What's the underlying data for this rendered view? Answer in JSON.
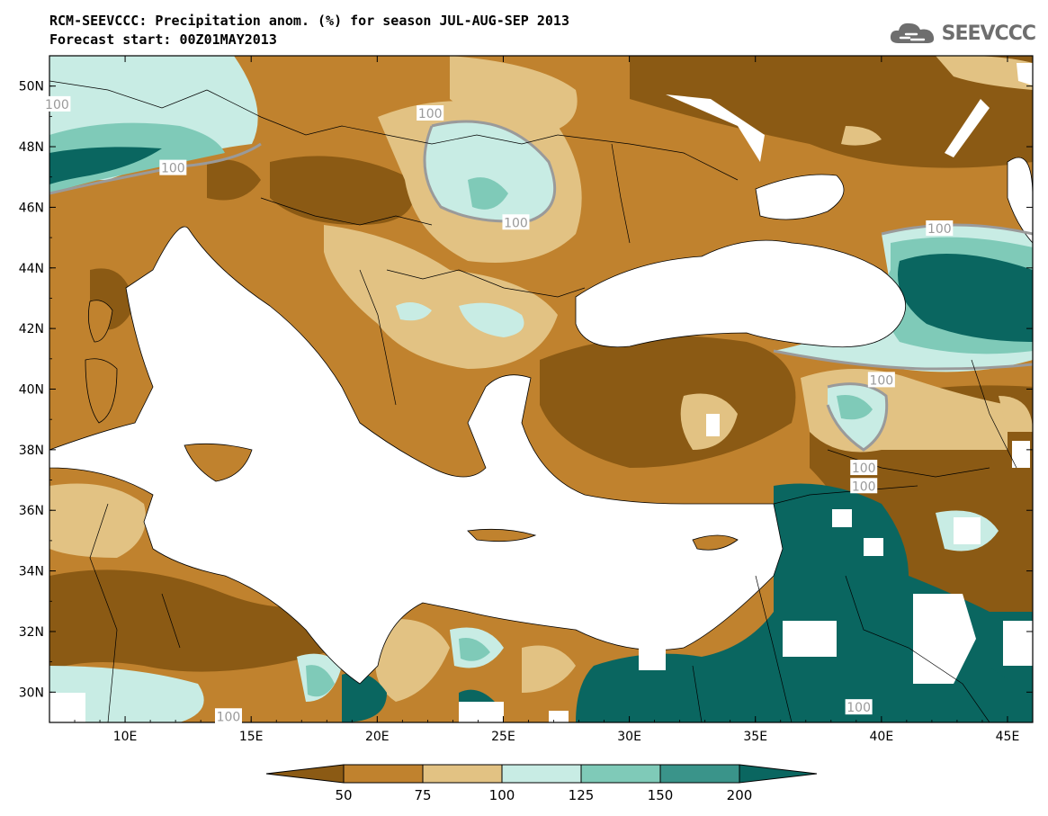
{
  "title": {
    "line1": "RCM-SEEVCCC: Precipitation anom. (%) for season JUL-AUG-SEP 2013",
    "line2": "Forecast start: 00Z01MAY2013"
  },
  "logo": {
    "text": "SEEVCCC",
    "icon": "cloud-icon",
    "color": "#6e6e6e"
  },
  "map": {
    "lon_range": [
      7,
      46
    ],
    "lat_range": [
      29,
      51
    ],
    "ocean_color": "#ffffff",
    "lat_ticks": [
      {
        "value": 30,
        "label": "30N"
      },
      {
        "value": 32,
        "label": "32N"
      },
      {
        "value": 34,
        "label": "34N"
      },
      {
        "value": 36,
        "label": "36N"
      },
      {
        "value": 38,
        "label": "38N"
      },
      {
        "value": 40,
        "label": "40N"
      },
      {
        "value": 42,
        "label": "42N"
      },
      {
        "value": 44,
        "label": "44N"
      },
      {
        "value": 46,
        "label": "46N"
      },
      {
        "value": 48,
        "label": "48N"
      },
      {
        "value": 50,
        "label": "50N"
      }
    ],
    "lon_ticks": [
      {
        "value": 10,
        "label": "10E"
      },
      {
        "value": 15,
        "label": "15E"
      },
      {
        "value": 20,
        "label": "20E"
      },
      {
        "value": 25,
        "label": "25E"
      },
      {
        "value": 30,
        "label": "30E"
      },
      {
        "value": 35,
        "label": "35E"
      },
      {
        "value": 40,
        "label": "40E"
      },
      {
        "value": 45,
        "label": "45E"
      }
    ],
    "contour_labels": [
      {
        "text": "100",
        "lon": 7.3,
        "lat": 49.4
      },
      {
        "text": "100",
        "lon": 22.1,
        "lat": 49.1
      },
      {
        "text": "100",
        "lon": 11.9,
        "lat": 47.3
      },
      {
        "text": "100",
        "lon": 25.5,
        "lat": 45.5
      },
      {
        "text": "100",
        "lon": 42.3,
        "lat": 45.3
      },
      {
        "text": "100",
        "lon": 40.0,
        "lat": 40.3
      },
      {
        "text": "100",
        "lon": 39.3,
        "lat": 37.4
      },
      {
        "text": "100",
        "lon": 39.3,
        "lat": 36.8
      },
      {
        "text": "100",
        "lon": 39.1,
        "lat": 29.5
      },
      {
        "text": "100",
        "lon": 14.1,
        "lat": 29.2
      }
    ]
  },
  "colorbar": {
    "colors": [
      "#8b5a14",
      "#c0822e",
      "#e2c283",
      "#c8ece4",
      "#7fcab8",
      "#3a948a",
      "#0a6660"
    ],
    "labels": [
      "50",
      "75",
      "100",
      "125",
      "150",
      "200"
    ]
  }
}
